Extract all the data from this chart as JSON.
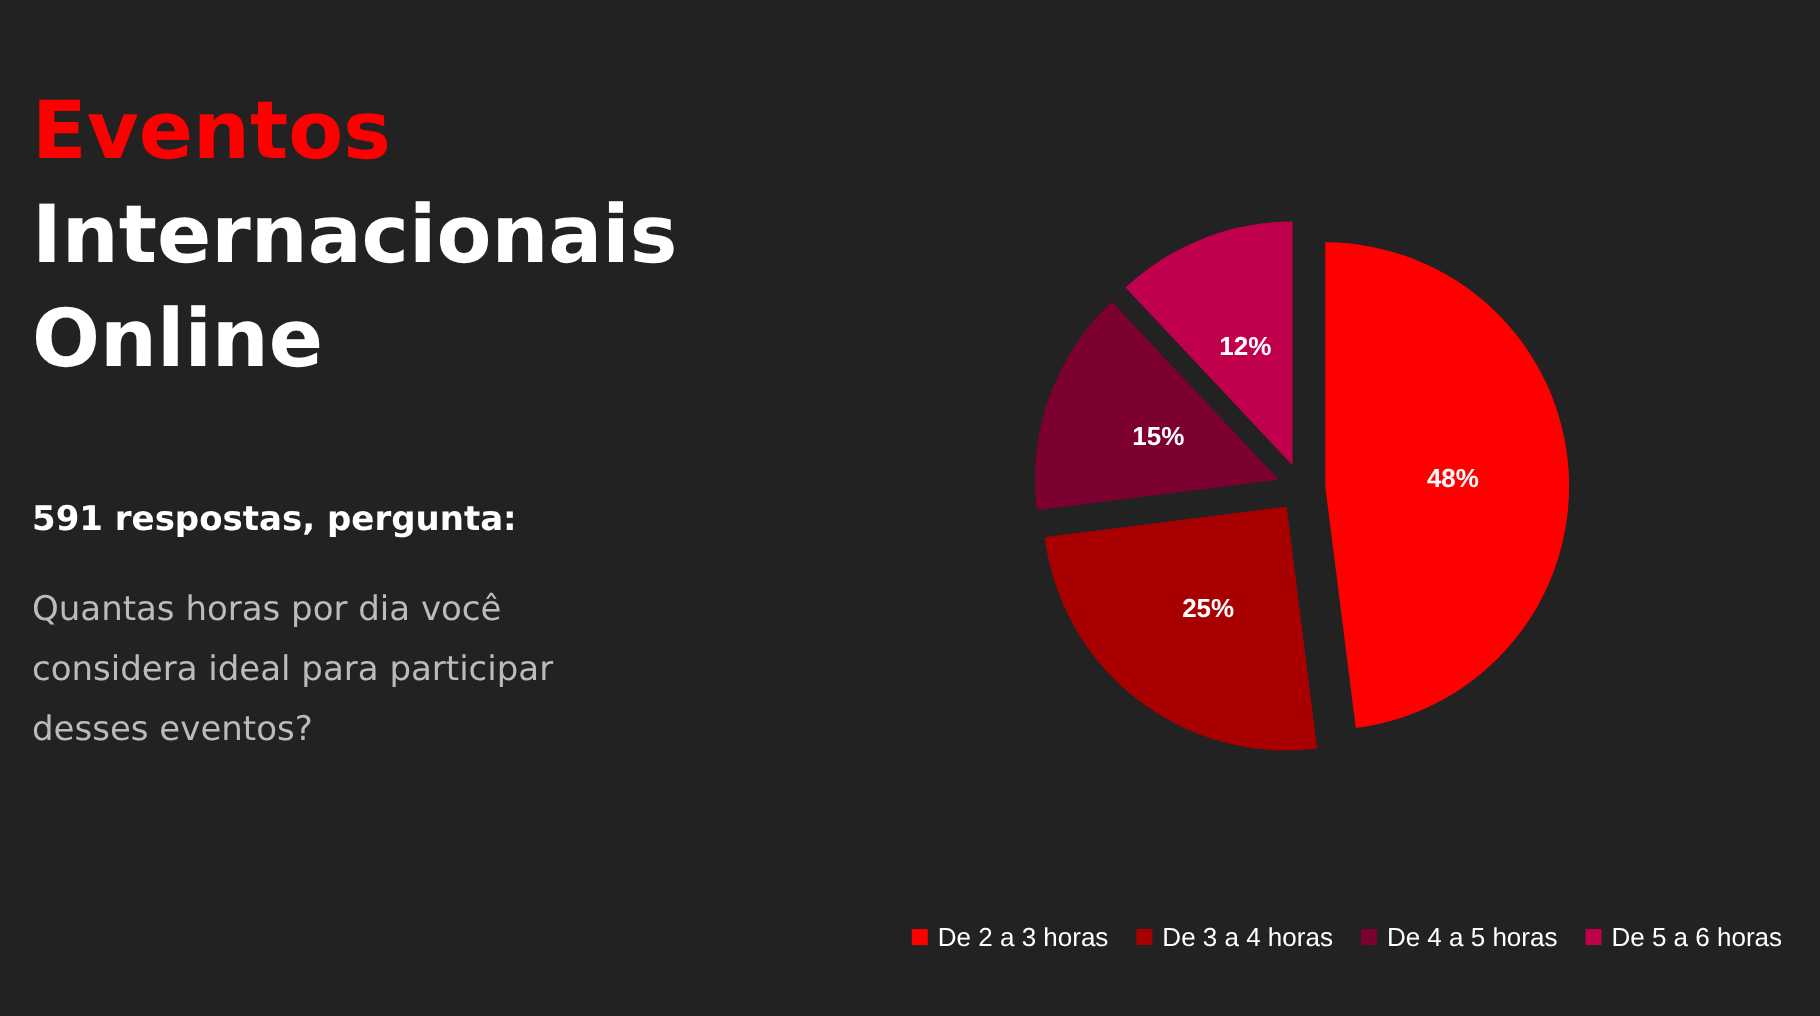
{
  "chart_data": {
    "type": "pie",
    "title": "Eventos Internacionais Online",
    "subtitle": "591 respostas, pergunta:",
    "annotations": [
      "Quantas horas por dia você considera ideal para participar desses eventos?"
    ],
    "categories": [
      "De 2 a 3 horas",
      "De 3 a 4 horas",
      "De 4 a 5 horas",
      "De 5 a 6 horas"
    ],
    "values": [
      48,
      25,
      15,
      12
    ],
    "value_labels": [
      "48%",
      "25%",
      "15%",
      "12%"
    ],
    "colors": [
      "#ff0000",
      "#a80000",
      "#7c0030",
      "#c0004c"
    ],
    "legend": "bottom right"
  }
}
